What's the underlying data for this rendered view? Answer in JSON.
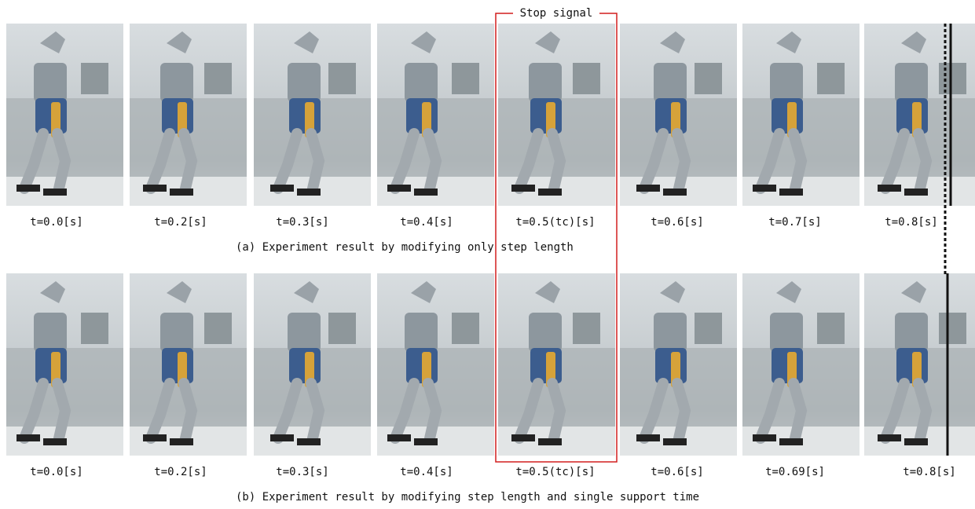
{
  "stop_signal": "Stop signal",
  "rows": [
    {
      "labels": [
        "t=0.0[s]",
        "t=0.2[s]",
        "t=0.3[s]",
        "t=0.4[s]",
        "t=0.5(tc)[s]",
        "t=0.6[s]",
        "t=0.7[s]",
        "t=0.8[s]"
      ],
      "caption": "(a) Experiment result by modifying only step length"
    },
    {
      "labels": [
        "t=0.0[s]",
        "t=0.2[s]",
        "t=0.3[s]",
        "t=0.4[s]",
        "t=0.5(tc)[s]",
        "t=0.6[s]",
        "t=0.69[s]",
        "t=0.8[s]"
      ],
      "caption": "(b) Experiment result by modifying step length and single support time"
    }
  ]
}
